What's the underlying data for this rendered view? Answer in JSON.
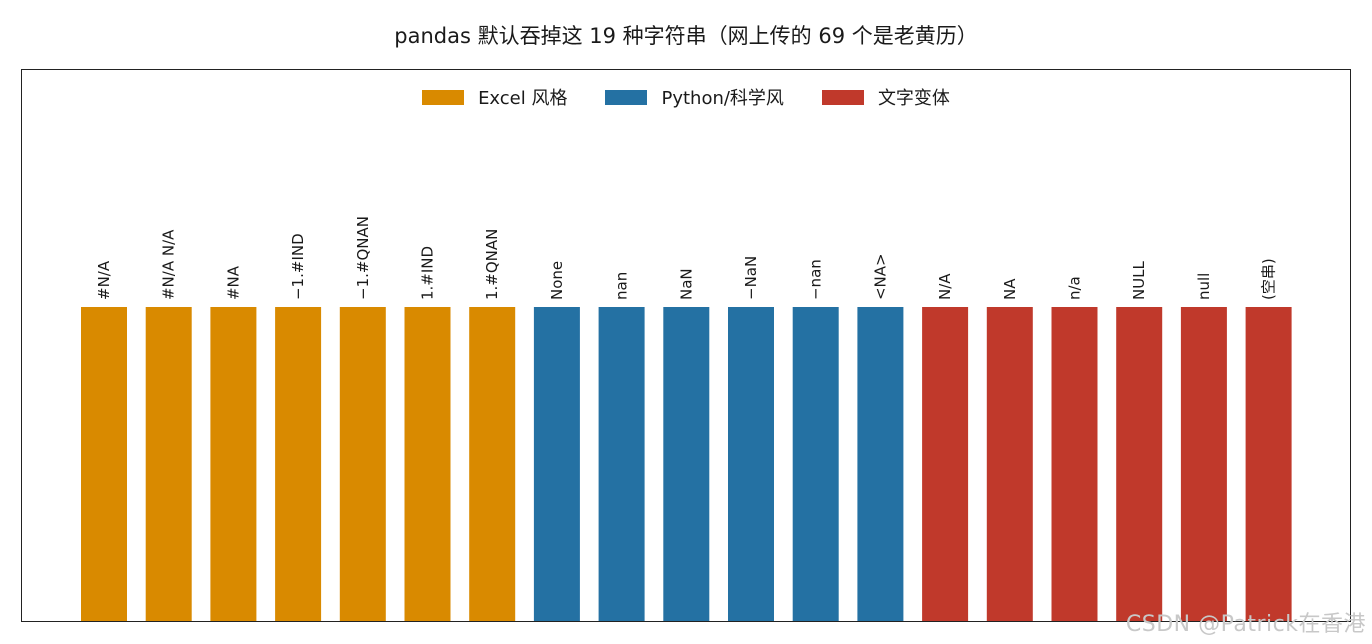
{
  "chart_data": {
    "type": "bar",
    "title": "pandas 默认吞掉这 19 种字符串（网上传的 69 个是老黄历）",
    "categories": [
      "#N/A",
      "#N/A N/A",
      "#NA",
      "−1.#IND",
      "−1.#QNAN",
      "1.#IND",
      "1.#QNAN",
      "None",
      "nan",
      "NaN",
      "−NaN",
      "−nan",
      "<NA>",
      "N/A",
      "NA",
      "n/a",
      "NULL",
      "null",
      "(空串)"
    ],
    "values": [
      1,
      1,
      1,
      1,
      1,
      1,
      1,
      1,
      1,
      1,
      1,
      1,
      1,
      1,
      1,
      1,
      1,
      1,
      1
    ],
    "groups": [
      "excel",
      "excel",
      "excel",
      "excel",
      "excel",
      "excel",
      "excel",
      "python",
      "python",
      "python",
      "python",
      "python",
      "python",
      "text",
      "text",
      "text",
      "text",
      "text",
      "text"
    ],
    "ylim": [
      0,
      1
    ],
    "xlabel": "",
    "ylabel": "",
    "grid": false,
    "legend": {
      "placement": "top-center",
      "entries": [
        {
          "key": "excel",
          "label": "Excel 风格",
          "color": "#D98A00"
        },
        {
          "key": "python",
          "label": "Python/科学风",
          "color": "#2471A3"
        },
        {
          "key": "text",
          "label": "文字变体",
          "color": "#C0392B"
        }
      ]
    }
  },
  "watermark": "CSDN @Patrick在香港"
}
